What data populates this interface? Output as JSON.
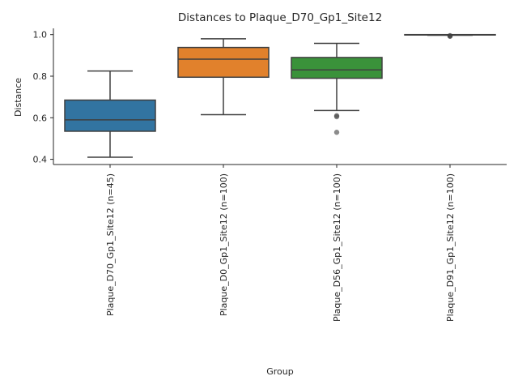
{
  "chart_data": {
    "type": "box",
    "title": "Distances to Plaque_D70_Gp1_Site12",
    "xlabel": "Group",
    "ylabel": "Distance",
    "ylim": [
      0.375,
      1.03
    ],
    "yticks": [
      0.4,
      0.6,
      0.8,
      1.0
    ],
    "ytick_labels": [
      "0.4",
      "0.6",
      "0.8",
      "1.0"
    ],
    "grid": false,
    "categories": [
      "Plaque_D70_Gp1_Site12 (n=45)",
      "Plaque_D0_Gp1_Site12 (n=100)",
      "Plaque_D56_Gp1_Site12 (n=100)",
      "Plaque_D91_Gp1_Site12 (n=100)"
    ],
    "colors": [
      "#3274a1",
      "#e1812c",
      "#3a923a",
      "#c03d3e"
    ],
    "boxes": [
      {
        "whisker_low": 0.41,
        "q1": 0.535,
        "median": 0.59,
        "q3": 0.685,
        "whisker_high": 0.825,
        "outliers": []
      },
      {
        "whisker_low": 0.615,
        "q1": 0.795,
        "median": 0.882,
        "q3": 0.938,
        "whisker_high": 0.98,
        "outliers": []
      },
      {
        "whisker_low": 0.635,
        "q1": 0.79,
        "median": 0.83,
        "q3": 0.89,
        "whisker_high": 0.958,
        "outliers": [
          0.61,
          0.605,
          0.53
        ]
      },
      {
        "whisker_low": 0.997,
        "q1": 1.0,
        "median": 1.0,
        "q3": 1.0,
        "whisker_high": 1.0,
        "outliers": [
          0.995,
          0.993,
          0.992
        ]
      }
    ]
  }
}
